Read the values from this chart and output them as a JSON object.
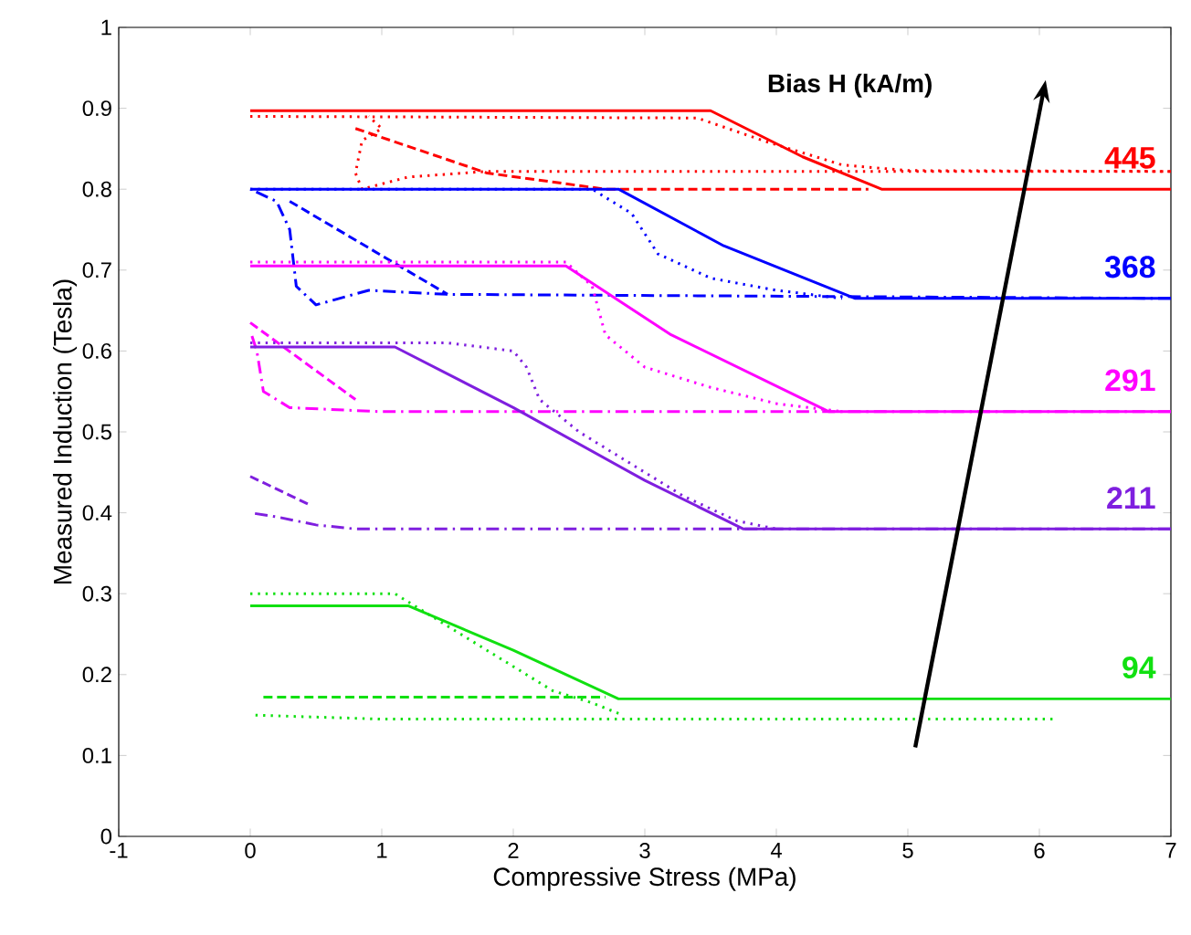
{
  "chart_data": {
    "type": "line",
    "xlabel": "Compressive Stress (MPa)",
    "ylabel": "Measured Induction (Tesla)",
    "annotations": [
      "Bias H (kA/m)"
    ],
    "xlim": [
      -1,
      7
    ],
    "ylim": [
      0,
      1
    ],
    "xticks": [
      -1,
      0,
      1,
      2,
      3,
      4,
      5,
      6,
      7
    ],
    "yticks": [
      0,
      0.1,
      0.2,
      0.3,
      0.4,
      0.5,
      0.6,
      0.7,
      0.8,
      0.9,
      1
    ],
    "grid": false,
    "legend": false,
    "series": [
      {
        "name": "445",
        "color": "#ff0000",
        "line_style": "solid",
        "x": [
          0,
          3.5,
          4.2,
          4.8,
          7
        ],
        "values": [
          0.897,
          0.897,
          0.84,
          0.8,
          0.8
        ]
      },
      {
        "color": "#ff0000",
        "line_style": "dashed",
        "x": [
          0.8,
          1.8,
          2.7,
          4.7
        ],
        "values": [
          0.875,
          0.82,
          0.8,
          0.8
        ]
      },
      {
        "color": "#ff0000",
        "line_style": "dotted",
        "x": [
          0,
          3.4,
          3.9,
          4.5,
          5.0,
          7
        ],
        "values": [
          0.89,
          0.888,
          0.86,
          0.83,
          0.823,
          0.822
        ]
      },
      {
        "color": "#ff0000",
        "line_style": "dotted",
        "x": [
          7,
          1.8,
          1.2,
          0.85,
          0.8,
          0.85,
          1.0,
          0.9
        ],
        "values": [
          0.822,
          0.822,
          0.815,
          0.8,
          0.82,
          0.86,
          0.875,
          0.89
        ]
      },
      {
        "name": "368",
        "color": "#0000ff",
        "line_style": "solid",
        "x": [
          0,
          2.8,
          3.6,
          4.6,
          7
        ],
        "values": [
          0.8,
          0.8,
          0.73,
          0.665,
          0.665
        ]
      },
      {
        "color": "#0000ff",
        "line_style": "dashed",
        "x": [
          0.3,
          1.5
        ],
        "values": [
          0.785,
          0.67
        ]
      },
      {
        "color": "#0000ff",
        "line_style": "dotted",
        "x": [
          0,
          2.6,
          2.9,
          3.1,
          3.5,
          4.0,
          4.5
        ],
        "values": [
          0.8,
          0.8,
          0.77,
          0.72,
          0.69,
          0.675,
          0.665
        ]
      },
      {
        "color": "#0000ff",
        "line_style": "dashdot",
        "x": [
          7,
          1.5,
          0.9,
          0.5,
          0.35,
          0.3,
          0.2,
          0
        ],
        "values": [
          0.665,
          0.67,
          0.675,
          0.657,
          0.68,
          0.75,
          0.785,
          0.8
        ]
      },
      {
        "name": "291",
        "color": "#ff00ff",
        "line_style": "solid",
        "x": [
          0,
          2.4,
          3.2,
          4.4,
          7
        ],
        "values": [
          0.705,
          0.705,
          0.62,
          0.525,
          0.525
        ]
      },
      {
        "color": "#ff00ff",
        "line_style": "dashed",
        "x": [
          0,
          0.8
        ],
        "values": [
          0.635,
          0.54
        ]
      },
      {
        "color": "#ff00ff",
        "line_style": "dotted",
        "x": [
          0,
          2.4,
          2.6,
          2.7,
          3.0,
          3.5,
          4.0,
          4.5
        ],
        "values": [
          0.71,
          0.71,
          0.68,
          0.62,
          0.58,
          0.555,
          0.535,
          0.525
        ]
      },
      {
        "color": "#ff00ff",
        "line_style": "dashdot",
        "x": [
          7,
          1.0,
          0.3,
          0.1,
          0.05,
          0
        ],
        "values": [
          0.525,
          0.525,
          0.53,
          0.55,
          0.6,
          0.625
        ]
      },
      {
        "name": "211",
        "color": "#7f1fdf",
        "line_style": "solid",
        "x": [
          0,
          1.1,
          2.0,
          3.0,
          3.75,
          7
        ],
        "values": [
          0.605,
          0.605,
          0.53,
          0.44,
          0.38,
          0.38
        ]
      },
      {
        "color": "#7f1fdf",
        "line_style": "dashed",
        "x": [
          0,
          0.45
        ],
        "values": [
          0.445,
          0.41
        ]
      },
      {
        "color": "#7f1fdf",
        "line_style": "dotted",
        "x": [
          0,
          1.5,
          2.0,
          2.1,
          2.2,
          2.5,
          3.0,
          3.3,
          3.7,
          4.0
        ],
        "values": [
          0.61,
          0.61,
          0.6,
          0.58,
          0.54,
          0.5,
          0.45,
          0.42,
          0.39,
          0.38
        ]
      },
      {
        "color": "#7f1fdf",
        "line_style": "dashdot",
        "x": [
          7,
          0.8,
          0.5,
          0.2,
          0
        ],
        "values": [
          0.38,
          0.38,
          0.385,
          0.395,
          0.4
        ]
      },
      {
        "name": "94",
        "color": "#11e011",
        "line_style": "solid",
        "x": [
          0,
          1.2,
          2.0,
          2.8,
          7
        ],
        "values": [
          0.285,
          0.285,
          0.23,
          0.17,
          0.17
        ]
      },
      {
        "color": "#11e011",
        "line_style": "dashed",
        "x": [
          0.1,
          2.7
        ],
        "values": [
          0.172,
          0.172
        ]
      },
      {
        "color": "#11e011",
        "line_style": "dotted",
        "x": [
          0,
          1.1,
          1.3,
          1.6,
          2.0,
          2.3,
          2.6,
          2.8
        ],
        "values": [
          0.3,
          0.3,
          0.28,
          0.25,
          0.21,
          0.18,
          0.165,
          0.152
        ]
      },
      {
        "color": "#11e011",
        "line_style": "dotted",
        "x": [
          6.1,
          1.0,
          0
        ],
        "values": [
          0.145,
          0.145,
          0.15
        ]
      }
    ]
  }
}
